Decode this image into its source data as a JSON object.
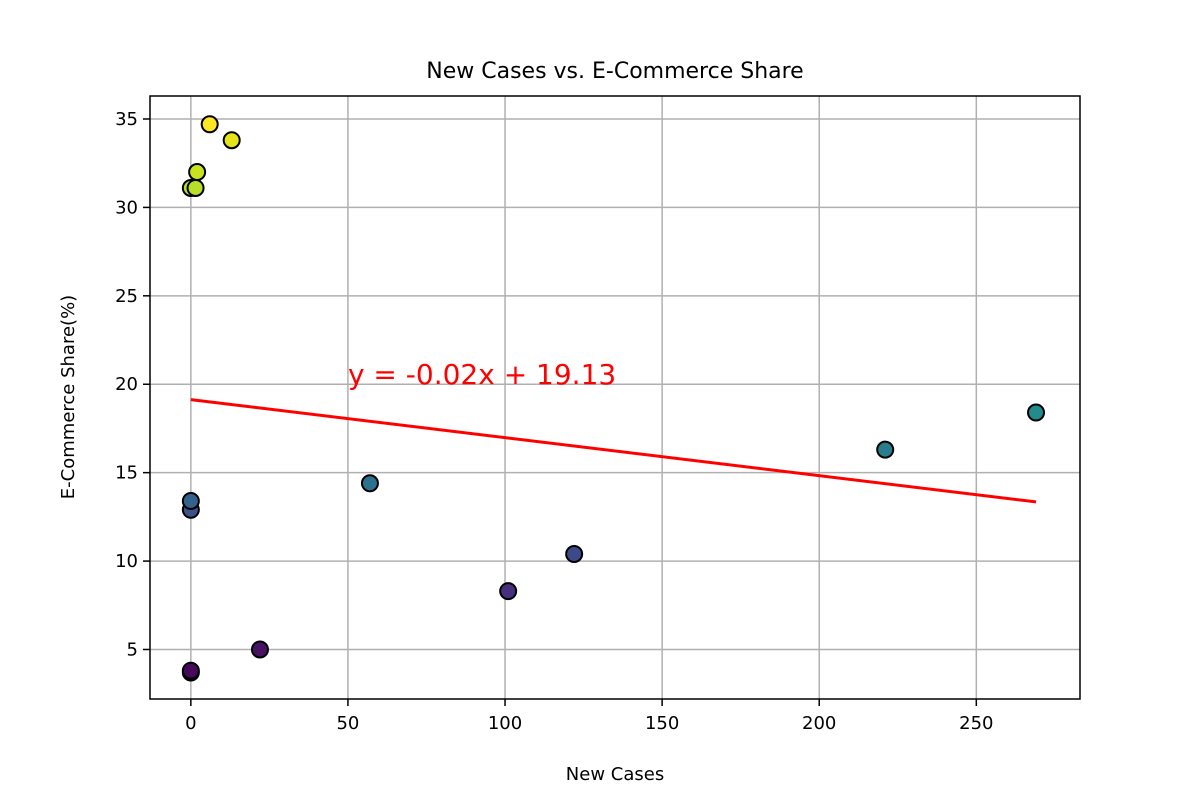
{
  "chart_data": {
    "type": "scatter",
    "title": "New Cases vs. E-Commerce Share",
    "xlabel": "New Cases",
    "ylabel": "E-Commerce Share(%)",
    "xlim": [
      -13,
      283
    ],
    "ylim": [
      2.2,
      36.3
    ],
    "xticks": [
      0,
      50,
      100,
      150,
      200,
      250
    ],
    "yticks": [
      5,
      10,
      15,
      20,
      25,
      30,
      35
    ],
    "grid": true,
    "colormap": "viridis",
    "points": [
      {
        "x": 0,
        "y": 3.7,
        "color": "#440154"
      },
      {
        "x": 0,
        "y": 3.8,
        "color": "#46085c"
      },
      {
        "x": 22,
        "y": 5.0,
        "color": "#471164"
      },
      {
        "x": 101,
        "y": 8.3,
        "color": "#472f7d"
      },
      {
        "x": 122,
        "y": 10.4,
        "color": "#3e4989"
      },
      {
        "x": 0,
        "y": 12.9,
        "color": "#3b528b"
      },
      {
        "x": 0,
        "y": 13.4,
        "color": "#33638d"
      },
      {
        "x": 57,
        "y": 14.4,
        "color": "#2c728e"
      },
      {
        "x": 221,
        "y": 16.3,
        "color": "#287d8e"
      },
      {
        "x": 269,
        "y": 18.4,
        "color": "#238a8d"
      },
      {
        "x": 0,
        "y": 31.1,
        "color": "#b5de2b"
      },
      {
        "x": 1.5,
        "y": 31.1,
        "color": "#b8de29"
      },
      {
        "x": 2,
        "y": 32.0,
        "color": "#cae11f"
      },
      {
        "x": 13,
        "y": 33.8,
        "color": "#e5e419"
      },
      {
        "x": 6,
        "y": 34.7,
        "color": "#fde725"
      }
    ],
    "regression": {
      "slope": -0.0215,
      "intercept": 19.13,
      "x_start": 0,
      "x_end": 269,
      "color": "#ff0000"
    },
    "annotation": {
      "text": "y = -0.02x + 19.13",
      "x": 50,
      "y": 20,
      "color": "#ff0000"
    }
  }
}
